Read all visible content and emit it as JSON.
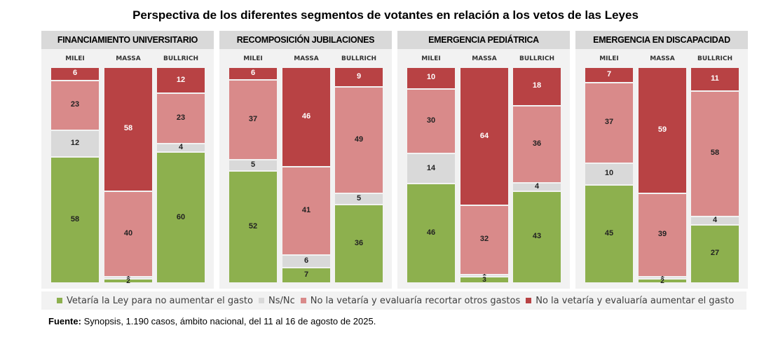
{
  "title": "Perspectiva de los diferentes segmentos de votantes en relación a los vetos de las Leyes",
  "colors": {
    "vetaria": "#8db04e",
    "nsnc": "#d9d9d9",
    "no_recortar": "#d98a8a",
    "no_aumentar": "#b84244",
    "panel_bg": "#f2f2f2",
    "header_bg": "#d9d9d9"
  },
  "legend": [
    {
      "key": "vetaria",
      "label": "Vetaría la Ley para no aumentar el gasto"
    },
    {
      "key": "nsnc",
      "label": "Ns/Nc"
    },
    {
      "key": "no_recortar",
      "label": "No la vetaría y evaluaría recortar otros gastos"
    },
    {
      "key": "no_aumentar",
      "label": "No la vetaría y evaluaría aumentar el gasto"
    }
  ],
  "source_label": "Fuente:",
  "source_text": " Synopsis, 1.190 casos, ámbito nacional, del 11 al 16 de agosto de 2025.",
  "chart_data": [
    {
      "type": "bar",
      "stacked": true,
      "title": "FINANCIAMIENTO UNIVERSITARIO",
      "categories": [
        "MILEI",
        "MASSA",
        "BULLRICH"
      ],
      "series": [
        {
          "name": "Vetaría la Ley para no aumentar el gasto",
          "key": "vetaria",
          "values": [
            58,
            2,
            60
          ]
        },
        {
          "name": "Ns/Nc",
          "key": "nsnc",
          "values": [
            12,
            1,
            4
          ]
        },
        {
          "name": "No la vetaría y evaluaría recortar otros gastos",
          "key": "no_recortar",
          "values": [
            23,
            40,
            23
          ]
        },
        {
          "name": "No la vetaría y evaluaría aumentar el gasto",
          "key": "no_aumentar",
          "values": [
            6,
            58,
            12
          ]
        }
      ]
    },
    {
      "type": "bar",
      "stacked": true,
      "title": "RECOMPOSICIÓN JUBILACIONES",
      "categories": [
        "MILEI",
        "MASSA",
        "BULLRICH"
      ],
      "series": [
        {
          "name": "Vetaría la Ley para no aumentar el gasto",
          "key": "vetaria",
          "values": [
            52,
            7,
            36
          ]
        },
        {
          "name": "Ns/Nc",
          "key": "nsnc",
          "values": [
            5,
            6,
            5
          ]
        },
        {
          "name": "No la vetaría y evaluaría recortar otros gastos",
          "key": "no_recortar",
          "values": [
            37,
            41,
            49
          ]
        },
        {
          "name": "No la vetaría y evaluaría aumentar el gasto",
          "key": "no_aumentar",
          "values": [
            6,
            46,
            9
          ]
        }
      ]
    },
    {
      "type": "bar",
      "stacked": true,
      "title": "EMERGENCIA PEDIÁTRICA",
      "categories": [
        "MILEI",
        "MASSA",
        "BULLRICH"
      ],
      "series": [
        {
          "name": "Vetaría la Ley para no aumentar el gasto",
          "key": "vetaria",
          "values": [
            46,
            3,
            43
          ]
        },
        {
          "name": "Ns/Nc",
          "key": "nsnc",
          "values": [
            14,
            1,
            4
          ]
        },
        {
          "name": "No la vetaría y evaluaría recortar otros gastos",
          "key": "no_recortar",
          "values": [
            30,
            32,
            36
          ]
        },
        {
          "name": "No la vetaría y evaluaría aumentar el gasto",
          "key": "no_aumentar",
          "values": [
            10,
            64,
            18
          ]
        }
      ]
    },
    {
      "type": "bar",
      "stacked": true,
      "title": "EMERGENCIA EN DISCAPACIDAD",
      "categories": [
        "MILEI",
        "MASSA",
        "BULLRICH"
      ],
      "series": [
        {
          "name": "Vetaría la Ley para no aumentar el gasto",
          "key": "vetaria",
          "values": [
            45,
            2,
            27
          ]
        },
        {
          "name": "Ns/Nc",
          "key": "nsnc",
          "values": [
            10,
            1,
            4
          ]
        },
        {
          "name": "No la vetaría y evaluaría recortar otros gastos",
          "key": "no_recortar",
          "values": [
            37,
            39,
            58
          ]
        },
        {
          "name": "No la vetaría y evaluaría aumentar el gasto",
          "key": "no_aumentar",
          "values": [
            7,
            59,
            11
          ]
        }
      ]
    }
  ]
}
